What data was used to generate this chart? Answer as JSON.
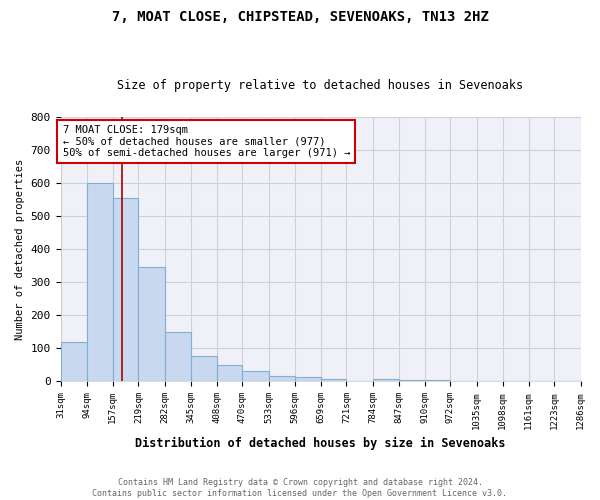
{
  "title": "7, MOAT CLOSE, CHIPSTEAD, SEVENOAKS, TN13 2HZ",
  "subtitle": "Size of property relative to detached houses in Sevenoaks",
  "xlabel": "Distribution of detached houses by size in Sevenoaks",
  "ylabel": "Number of detached properties",
  "bins": [
    "31sqm",
    "94sqm",
    "157sqm",
    "219sqm",
    "282sqm",
    "345sqm",
    "408sqm",
    "470sqm",
    "533sqm",
    "596sqm",
    "659sqm",
    "721sqm",
    "784sqm",
    "847sqm",
    "910sqm",
    "972sqm",
    "1035sqm",
    "1098sqm",
    "1161sqm",
    "1223sqm",
    "1286sqm"
  ],
  "bin_edges": [
    31,
    94,
    157,
    219,
    282,
    345,
    408,
    470,
    533,
    596,
    659,
    721,
    784,
    847,
    910,
    972,
    1035,
    1098,
    1161,
    1223,
    1286
  ],
  "values": [
    120,
    600,
    555,
    345,
    150,
    75,
    50,
    30,
    15,
    12,
    8,
    0,
    8,
    5,
    3,
    0,
    0,
    0,
    0,
    0
  ],
  "bar_color": "#c8d9ef",
  "bar_edge_color": "#7fafd4",
  "vline_x": 179,
  "vline_color": "#aa0000",
  "annotation_text": "7 MOAT CLOSE: 179sqm\n← 50% of detached houses are smaller (977)\n50% of semi-detached houses are larger (971) →",
  "annotation_box_color": "#ffffff",
  "annotation_box_edge": "#cc0000",
  "ylim": [
    0,
    800
  ],
  "yticks": [
    0,
    100,
    200,
    300,
    400,
    500,
    600,
    700,
    800
  ],
  "grid_color": "#d0d0d8",
  "footer_line1": "Contains HM Land Registry data © Crown copyright and database right 2024.",
  "footer_line2": "Contains public sector information licensed under the Open Government Licence v3.0.",
  "bg_color": "#ffffff",
  "plot_bg_color": "#f0f0f8"
}
